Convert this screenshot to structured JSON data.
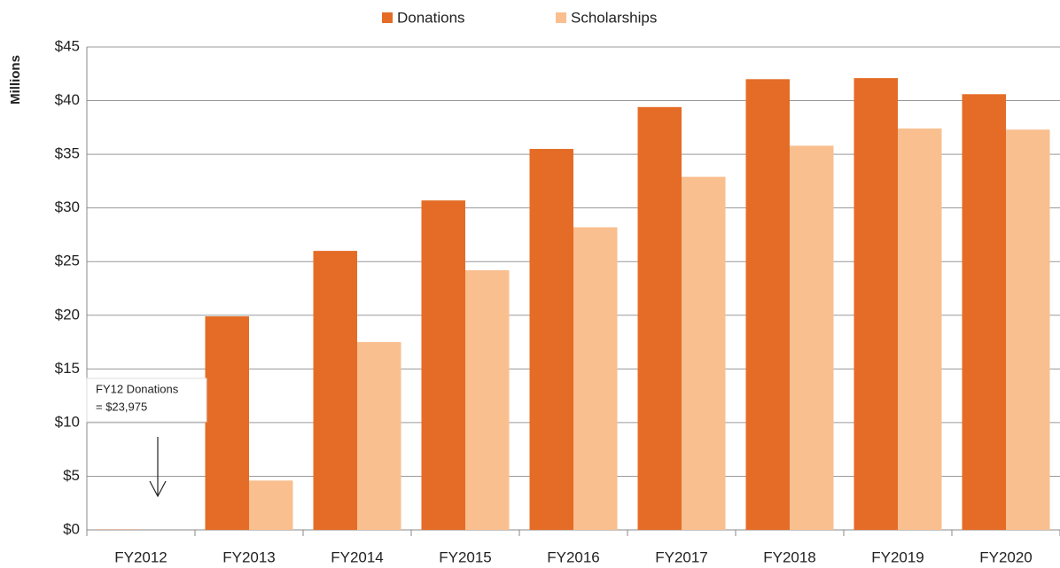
{
  "chart_data": {
    "type": "bar",
    "y_label": "Millions",
    "categories": [
      "FY2012",
      "FY2013",
      "FY2014",
      "FY2015",
      "FY2016",
      "FY2017",
      "FY2018",
      "FY2019",
      "FY2020"
    ],
    "series": [
      {
        "name": "Donations",
        "color": "#e46c26",
        "values": [
          0.023975,
          19.9,
          26.0,
          30.7,
          35.5,
          39.4,
          42.0,
          42.1,
          40.6
        ]
      },
      {
        "name": "Scholarships",
        "color": "#f9bf8f",
        "values": [
          null,
          4.6,
          17.5,
          24.2,
          28.2,
          32.9,
          35.8,
          37.4,
          37.3
        ]
      }
    ],
    "ylim": [
      0,
      45
    ],
    "yticks": [
      {
        "value": 0,
        "label": "$0"
      },
      {
        "value": 5,
        "label": "$5"
      },
      {
        "value": 10,
        "label": "$10"
      },
      {
        "value": 15,
        "label": "$15"
      },
      {
        "value": 20,
        "label": "$20"
      },
      {
        "value": 25,
        "label": "$25"
      },
      {
        "value": 30,
        "label": "$30"
      },
      {
        "value": 35,
        "label": "$35"
      },
      {
        "value": 40,
        "label": "$40"
      },
      {
        "value": 45,
        "label": "$45"
      }
    ],
    "grid": true,
    "legend": "top",
    "annotation": [
      "FY12 Donations",
      " = $23,975"
    ]
  }
}
